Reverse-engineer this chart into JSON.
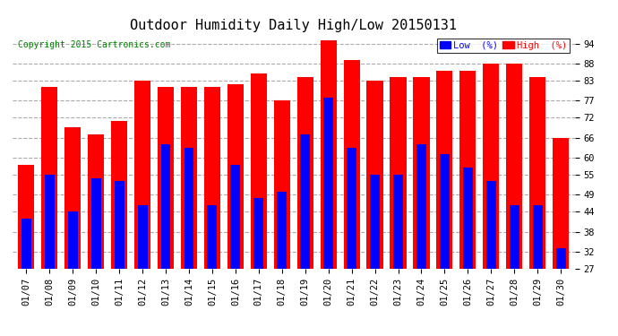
{
  "title": "Outdoor Humidity Daily High/Low 20150131",
  "copyright": "Copyright 2015 Cartronics.com",
  "legend_low_label": "Low  (%)",
  "legend_high_label": "High  (%)",
  "low_color": "#0000ff",
  "high_color": "#ff0000",
  "background_color": "#ffffff",
  "plot_bg_color": "#ffffff",
  "grid_color": "#aaaaaa",
  "dates": [
    "01/07",
    "01/08",
    "01/09",
    "01/10",
    "01/11",
    "01/12",
    "01/13",
    "01/14",
    "01/15",
    "01/16",
    "01/17",
    "01/18",
    "01/19",
    "01/20",
    "01/21",
    "01/22",
    "01/23",
    "01/24",
    "01/25",
    "01/26",
    "01/27",
    "01/28",
    "01/29",
    "01/30"
  ],
  "high_values": [
    58,
    81,
    69,
    67,
    71,
    83,
    81,
    81,
    81,
    82,
    85,
    77,
    84,
    95,
    89,
    83,
    84,
    84,
    86,
    86,
    88,
    88,
    84,
    66
  ],
  "low_values": [
    42,
    55,
    44,
    54,
    53,
    46,
    64,
    63,
    46,
    58,
    48,
    50,
    67,
    78,
    63,
    55,
    55,
    64,
    61,
    57,
    53,
    46,
    46,
    33
  ],
  "ylim_min": 27,
  "ylim_max": 97,
  "yticks": [
    27,
    32,
    38,
    44,
    49,
    55,
    60,
    66,
    72,
    77,
    83,
    88,
    94
  ],
  "title_fontsize": 11,
  "copyright_fontsize": 7,
  "tick_fontsize": 7.5,
  "legend_fontsize": 7.5,
  "bar_width": 0.7
}
